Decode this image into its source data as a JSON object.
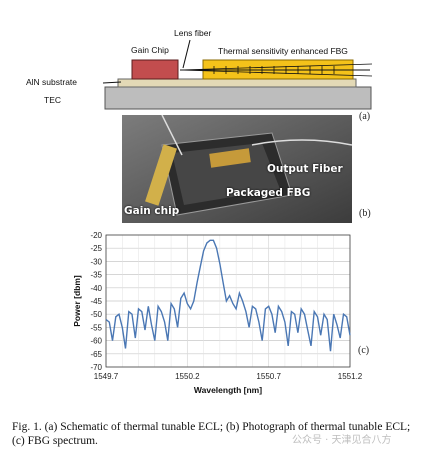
{
  "schematic": {
    "labels": {
      "gain_chip": "Gain Chip",
      "lens_fiber": "Lens fiber",
      "fbg": "Thermal sensitivity enhanced FBG",
      "aln": "AlN substrate",
      "tec": "TEC"
    },
    "panel_label": "(a)"
  },
  "photo": {
    "labels": {
      "output_fiber": "Output Fiber",
      "packaged_fbg": "Packaged FBG",
      "gain_chip": "Gain chip"
    },
    "panel_label": "(b)"
  },
  "chart_data": {
    "type": "line",
    "title": "",
    "xlabel": "Wavelength [nm]",
    "ylabel": "Power [dbm]",
    "xlim": [
      1549.7,
      1551.2
    ],
    "ylim": [
      -70,
      -20
    ],
    "x_ticks": [
      "1549.7",
      "1550.2",
      "1550.7",
      "1551.2"
    ],
    "y_ticks": [
      "-20",
      "-25",
      "-30",
      "-35",
      "-40",
      "-45",
      "-50",
      "-55",
      "-60",
      "-65",
      "-70"
    ],
    "grid": true,
    "color": "#4a77b4",
    "series": [
      {
        "x": [
          1549.7,
          1549.72,
          1549.74,
          1549.76,
          1549.78,
          1549.8,
          1549.82,
          1549.84,
          1549.86,
          1549.88,
          1549.9,
          1549.92,
          1549.94,
          1549.96,
          1549.98,
          1550.0,
          1550.02,
          1550.04,
          1550.06,
          1550.08,
          1550.1,
          1550.12,
          1550.14,
          1550.16,
          1550.18,
          1550.2,
          1550.22,
          1550.24,
          1550.26,
          1550.28,
          1550.3,
          1550.32,
          1550.34,
          1550.36,
          1550.38,
          1550.4,
          1550.42,
          1550.44,
          1550.46,
          1550.48,
          1550.5,
          1550.52,
          1550.54,
          1550.56,
          1550.58,
          1550.6,
          1550.62,
          1550.64,
          1550.66,
          1550.68,
          1550.7,
          1550.72,
          1550.74,
          1550.76,
          1550.78,
          1550.8,
          1550.82,
          1550.84,
          1550.86,
          1550.88,
          1550.9,
          1550.92,
          1550.94,
          1550.96,
          1550.98,
          1551.0,
          1551.02,
          1551.04,
          1551.06,
          1551.08,
          1551.1,
          1551.12,
          1551.14,
          1551.16,
          1551.18,
          1551.2
        ],
        "y": [
          -52,
          -53,
          -60,
          -51,
          -50,
          -55,
          -63,
          -49,
          -50,
          -59,
          -48,
          -49,
          -56,
          -47,
          -54,
          -60,
          -47,
          -49,
          -53,
          -60,
          -46,
          -48,
          -55,
          -44,
          -42,
          -46,
          -48,
          -45,
          -38,
          -32,
          -26,
          -23,
          -22,
          -22,
          -25,
          -31,
          -38,
          -45,
          -43,
          -46,
          -48,
          -42,
          -45,
          -49,
          -55,
          -47,
          -48,
          -53,
          -60,
          -48,
          -47,
          -50,
          -57,
          -47,
          -49,
          -53,
          -62,
          -49,
          -50,
          -57,
          -48,
          -50,
          -56,
          -62,
          -49,
          -51,
          -58,
          -50,
          -52,
          -64,
          -50,
          -54,
          -59,
          -50,
          -51,
          -58
        ]
      }
    ],
    "panel_label": "(c)"
  },
  "caption": "Fig. 1.   (a) Schematic of thermal tunable ECL; (b) Photograph of thermal tunable ECL; (c) FBG spectrum.",
  "watermark": "公众号 · 天津见合八方"
}
